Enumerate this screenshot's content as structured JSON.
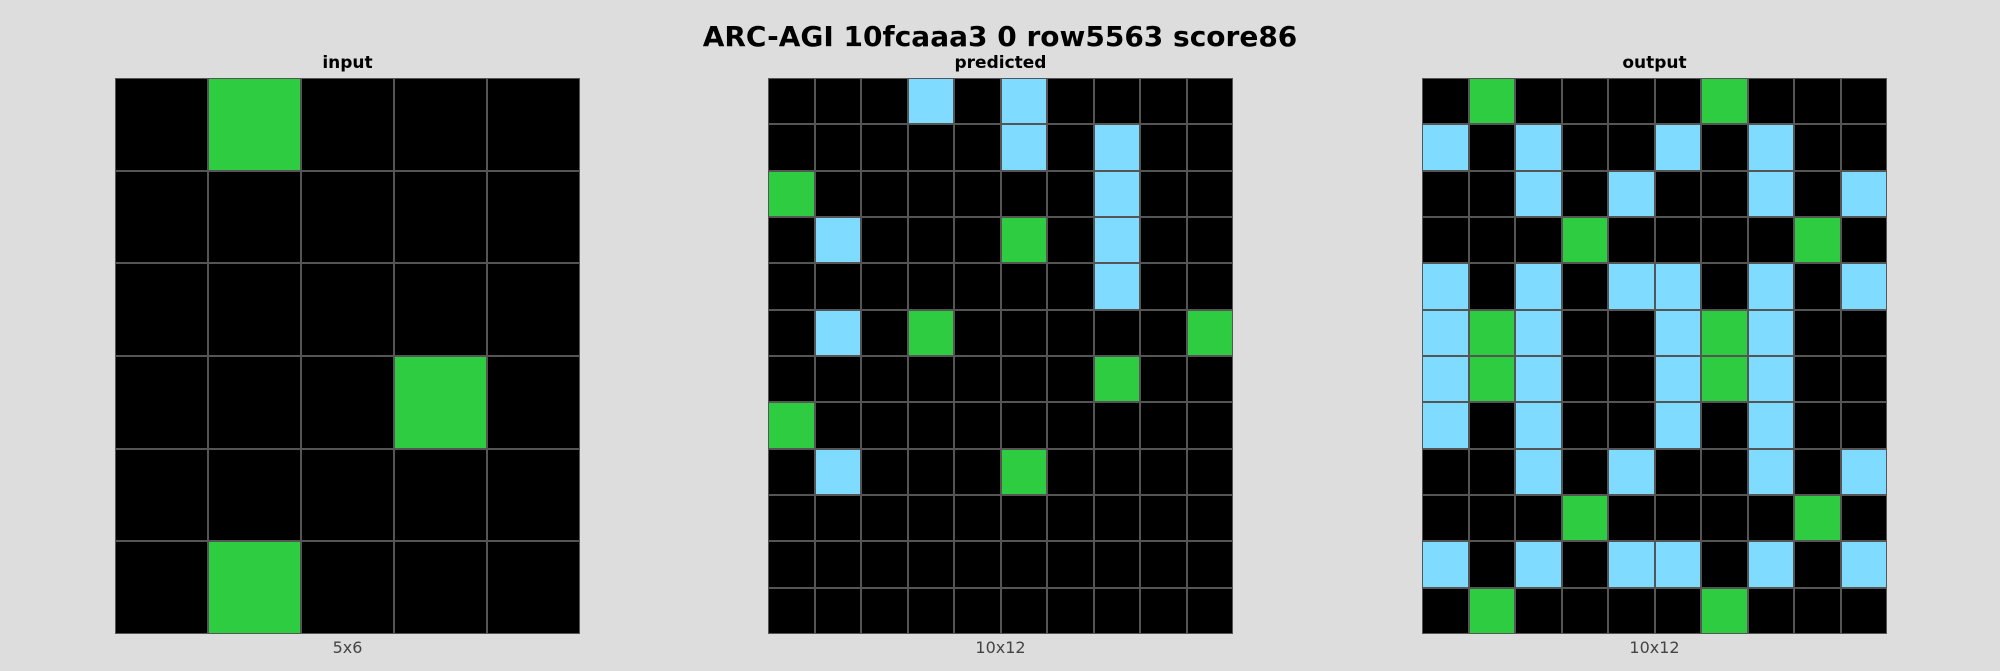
{
  "title": "ARC-AGI 10fcaaa3 0 row5563 score86",
  "palette": {
    "0": "#000000",
    "3": "#2ecc40",
    "8": "#7fdbff"
  },
  "panels": [
    {
      "label": "input",
      "caption": "5x6",
      "grid": [
        [
          0,
          3,
          0,
          0,
          0
        ],
        [
          0,
          0,
          0,
          0,
          0
        ],
        [
          0,
          0,
          0,
          0,
          0
        ],
        [
          0,
          0,
          0,
          3,
          0
        ],
        [
          0,
          0,
          0,
          0,
          0
        ],
        [
          0,
          3,
          0,
          0,
          0
        ]
      ]
    },
    {
      "label": "predicted",
      "caption": "10x12",
      "grid": [
        [
          0,
          0,
          0,
          8,
          0,
          8,
          0,
          0,
          0,
          0
        ],
        [
          0,
          0,
          0,
          0,
          0,
          8,
          0,
          8,
          0,
          0
        ],
        [
          3,
          0,
          0,
          0,
          0,
          0,
          0,
          8,
          0,
          0
        ],
        [
          0,
          8,
          0,
          0,
          0,
          3,
          0,
          8,
          0,
          0
        ],
        [
          0,
          0,
          0,
          0,
          0,
          0,
          0,
          8,
          0,
          0
        ],
        [
          0,
          8,
          0,
          3,
          0,
          0,
          0,
          0,
          0,
          3
        ],
        [
          0,
          0,
          0,
          0,
          0,
          0,
          0,
          3,
          0,
          0
        ],
        [
          3,
          0,
          0,
          0,
          0,
          0,
          0,
          0,
          0,
          0
        ],
        [
          0,
          8,
          0,
          0,
          0,
          3,
          0,
          0,
          0,
          0
        ],
        [
          0,
          0,
          0,
          0,
          0,
          0,
          0,
          0,
          0,
          0
        ],
        [
          0,
          0,
          0,
          0,
          0,
          0,
          0,
          0,
          0,
          0
        ],
        [
          0,
          0,
          0,
          0,
          0,
          0,
          0,
          0,
          0,
          0
        ]
      ]
    },
    {
      "label": "output",
      "caption": "10x12",
      "grid": [
        [
          0,
          3,
          0,
          0,
          0,
          0,
          3,
          0,
          0,
          0
        ],
        [
          8,
          0,
          8,
          0,
          0,
          8,
          0,
          8,
          0,
          0
        ],
        [
          0,
          0,
          8,
          0,
          8,
          0,
          0,
          8,
          0,
          8
        ],
        [
          0,
          0,
          0,
          3,
          0,
          0,
          0,
          0,
          3,
          0
        ],
        [
          8,
          0,
          8,
          0,
          8,
          8,
          0,
          8,
          0,
          8
        ],
        [
          8,
          3,
          8,
          0,
          0,
          8,
          3,
          8,
          0,
          0
        ],
        [
          8,
          3,
          8,
          0,
          0,
          8,
          3,
          8,
          0,
          0
        ],
        [
          8,
          0,
          8,
          0,
          0,
          8,
          0,
          8,
          0,
          0
        ],
        [
          0,
          0,
          8,
          0,
          8,
          0,
          0,
          8,
          0,
          8
        ],
        [
          0,
          0,
          0,
          3,
          0,
          0,
          0,
          0,
          3,
          0
        ],
        [
          8,
          0,
          8,
          0,
          8,
          8,
          0,
          8,
          0,
          8
        ],
        [
          0,
          3,
          0,
          0,
          0,
          0,
          3,
          0,
          0,
          0
        ]
      ]
    }
  ]
}
